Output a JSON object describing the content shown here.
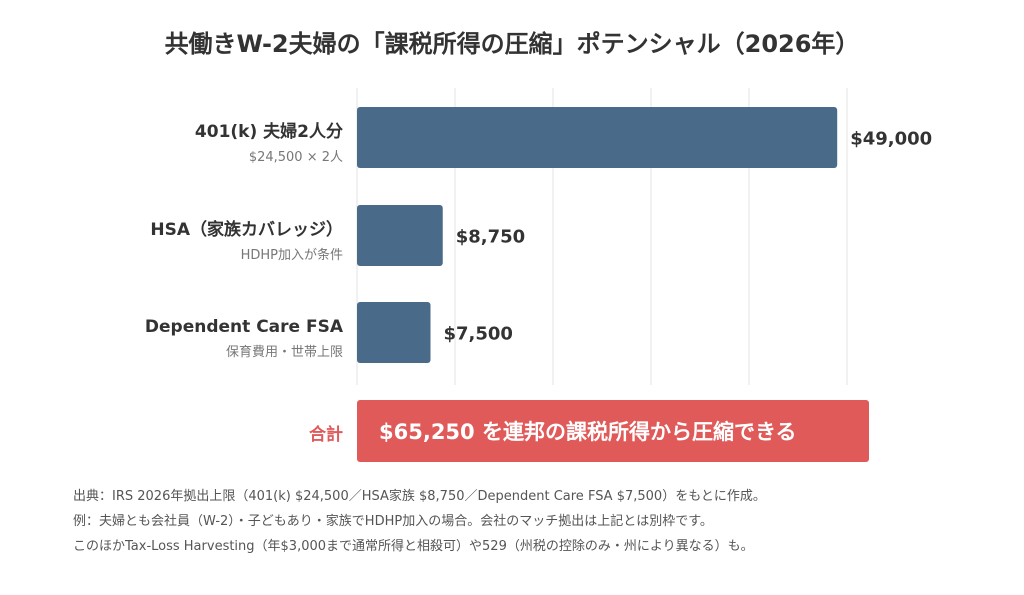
{
  "colors": {
    "bar": "#4a6a8a",
    "total": "#e05a5a",
    "grid": "#e3e3e3"
  },
  "chart_data": {
    "type": "bar",
    "orientation": "horizontal",
    "title": "共働きW-2夫婦の「課税所得の圧縮」ポテンシャル（2026年）",
    "categories": [
      "401(k) 夫婦2人分",
      "HSA（家族カバレッジ）",
      "Dependent Care FSA"
    ],
    "subtitles": [
      "$24,500 × 2人",
      "HDHP加入が条件",
      "保育費用・世帯上限"
    ],
    "values": [
      49000,
      8750,
      7500
    ],
    "value_labels": [
      "$49,000",
      "$8,750",
      "$7,500"
    ],
    "xlim": [
      0,
      50000
    ],
    "grid": true,
    "total": {
      "label": "合計",
      "value": 65250,
      "text": "$65,250 を連邦の課税所得から圧縮できる"
    }
  },
  "notes": [
    "出典：IRS 2026年拠出上限（401(k) $24,500／HSA家族 $8,750／Dependent Care FSA $7,500）をもとに作成。",
    "例：夫婦とも会社員（W-2）・子どもあり・家族でHDHP加入の場合。会社のマッチ拠出は上記とは別枠です。",
    "このほかTax-Loss Harvesting（年$3,000まで通常所得と相殺可）や529（州税の控除のみ・州により異なる）も。"
  ]
}
